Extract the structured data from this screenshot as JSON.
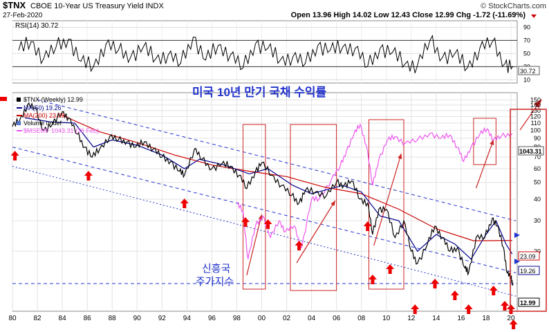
{
  "header": {
    "symbol": "$TNX",
    "description": "CBOE 10-Year US Treasury Yield INDX",
    "date": "27-Feb-2020",
    "brand": "© StockCharts.com",
    "ohlc": "Open 13.96  High 14.02  Low 12.43  Close 12.99  Chg -1.72 (-11.69%)",
    "ohlc_color": "#000000"
  },
  "rsi": {
    "label": "RSI(14) 30.72",
    "value_badge": "30.72",
    "ticks": [
      "90",
      "70",
      "50",
      "30",
      "10"
    ],
    "tick_values": [
      90,
      70,
      50,
      30,
      10
    ],
    "overbought": 70,
    "oversold": 30
  },
  "annotations": {
    "title_korean": "미국 10년 만기 국채 수익률",
    "em_label_line1": "신흥국",
    "em_label_line2": "주가지수"
  },
  "legend": {
    "l1": "$TNX (Weekly) 12.99",
    "l2": "MA(50) 19.26",
    "l3": "MA(200) 23.09",
    "l4": "Volume undef",
    "l5": "$MSEMF 1043.31 (26 Feb)"
  },
  "badges": {
    "msemf": "1043.31",
    "ma200": "23.09",
    "ma50": "19.26",
    "close": "12.99"
  },
  "colors": {
    "price": "#000000",
    "ma50": "#00008b",
    "ma200": "#cc0000",
    "msemf": "#ee55ee",
    "channel": "#2233cc",
    "arrow": "#ee0000",
    "box": "#cc2222"
  },
  "chart_data": {
    "type": "line",
    "title": "$TNX CBOE 10-Year US Treasury Yield INDX",
    "y_scale": "log",
    "ylim": [
      9,
      165
    ],
    "y_ticks": [
      150,
      140,
      130,
      120,
      110,
      100,
      90,
      80,
      70,
      60,
      50,
      40,
      30,
      20
    ],
    "x_ticks": [
      "80",
      "82",
      "84",
      "86",
      "88",
      "90",
      "92",
      "94",
      "96",
      "98",
      "00",
      "02",
      "04",
      "06",
      "08",
      "10",
      "12",
      "14",
      "16",
      "18",
      "20"
    ],
    "x_tick_years": [
      1980,
      1982,
      1984,
      1986,
      1988,
      1990,
      1992,
      1994,
      1996,
      1998,
      2000,
      2002,
      2004,
      2006,
      2008,
      2010,
      2012,
      2014,
      2016,
      2018,
      2020
    ],
    "series": [
      {
        "name": "$TNX (Weekly)",
        "x": [
          1980.0,
          1980.6,
          1981.2,
          1981.8,
          1982.5,
          1983.2,
          1984.0,
          1984.5,
          1985.2,
          1985.8,
          1986.4,
          1987.0,
          1987.8,
          1988.5,
          1989.2,
          1989.9,
          1990.6,
          1991.3,
          1992.0,
          1992.7,
          1993.4,
          1993.8,
          1994.6,
          1995.2,
          1996.0,
          1996.8,
          1997.5,
          1998.2,
          1998.8,
          1999.5,
          2000.0,
          2000.8,
          2001.6,
          2002.4,
          2003.0,
          2003.5,
          2004.3,
          2005.2,
          2006.0,
          2006.6,
          2007.2,
          2007.9,
          2008.5,
          2008.9,
          2009.4,
          2010.0,
          2010.7,
          2011.4,
          2012.0,
          2012.5,
          2013.3,
          2013.9,
          2014.5,
          2015.1,
          2015.7,
          2016.3,
          2016.6,
          2017.2,
          2017.9,
          2018.5,
          2018.9,
          2019.4,
          2019.7,
          2020.0,
          2020.15
        ],
        "values": [
          105,
          115,
          140,
          135,
          100,
          108,
          128,
          118,
          95,
          80,
          70,
          78,
          92,
          88,
          86,
          80,
          86,
          78,
          70,
          66,
          58,
          55,
          78,
          68,
          60,
          64,
          62,
          55,
          46,
          58,
          65,
          55,
          48,
          42,
          38,
          45,
          44,
          42,
          50,
          48,
          51,
          40,
          38,
          25,
          35,
          35,
          24,
          30,
          20,
          17,
          22,
          28,
          24,
          20,
          21,
          16,
          15,
          24,
          24,
          31,
          28,
          21,
          15,
          14,
          12.99
        ]
      },
      {
        "name": "MA(50)",
        "x": [
          1981.0,
          1983.0,
          1985.0,
          1986.5,
          1988.0,
          1990.0,
          1992.0,
          1993.8,
          1995.0,
          1997.0,
          1999.0,
          2000.5,
          2002.5,
          2004.0,
          2006.5,
          2008.0,
          2009.5,
          2011.0,
          2012.5,
          2014.0,
          2015.5,
          2016.8,
          2018.0,
          2018.8,
          2019.6,
          2020.1
        ],
        "values": [
          118,
          112,
          110,
          80,
          88,
          82,
          72,
          60,
          68,
          63,
          56,
          60,
          48,
          43,
          48,
          44,
          32,
          30,
          20,
          25,
          22,
          18,
          25,
          30,
          22,
          19.26
        ]
      },
      {
        "name": "MA(200)",
        "x": [
          1984.0,
          1987.0,
          1990.0,
          1993.0,
          1996.0,
          1999.0,
          2002.0,
          2005.0,
          2008.0,
          2011.0,
          2014.0,
          2017.0,
          2020.1
        ],
        "values": [
          122,
          98,
          85,
          72,
          63,
          58,
          54,
          47,
          43,
          35,
          27,
          23,
          23.09
        ]
      },
      {
        "name": "$MSEMF",
        "x": [
          1998.0,
          1998.5,
          1998.9,
          1999.5,
          2000.1,
          2000.7,
          2001.4,
          2001.9,
          2002.6,
          2003.2,
          2004.0,
          2004.6,
          2005.6,
          2006.3,
          2006.8,
          2007.4,
          2007.9,
          2008.4,
          2008.9,
          2009.4,
          2010.1,
          2010.7,
          2011.5,
          2012.5,
          2013.5,
          2014.4,
          2015.1,
          2015.7,
          2016.2,
          2016.8,
          2017.5,
          2018.1,
          2018.6,
          2019.2,
          2020.1
        ],
        "values": [
          38,
          34,
          18,
          28,
          32,
          24,
          30,
          26,
          28,
          21,
          40,
          40,
          52,
          62,
          76,
          95,
          108,
          82,
          48,
          68,
          88,
          92,
          84,
          88,
          96,
          90,
          94,
          80,
          66,
          80,
          95,
          102,
          88,
          92,
          96
        ]
      },
      {
        "name": "RSI(14)",
        "x": [
          1980.5,
          1981.5,
          1982.5,
          1983.5,
          1984.5,
          1985.5,
          1986.5,
          1987.5,
          1988.5,
          1989.5,
          1990.5,
          1991.5,
          1992.5,
          1993.5,
          1994.5,
          1995.5,
          1996.5,
          1997.5,
          1998.5,
          1999.5,
          2000.5,
          2001.5,
          2002.5,
          2003.5,
          2004.5,
          2005.5,
          2006.5,
          2007.5,
          2008.5,
          2009.5,
          2010.5,
          2011.5,
          2012.5,
          2013.5,
          2014.5,
          2015.5,
          2016.5,
          2017.5,
          2018.5,
          2019.5,
          2020.15
        ],
        "values": [
          55,
          68,
          42,
          60,
          72,
          38,
          30,
          64,
          55,
          45,
          60,
          42,
          48,
          35,
          75,
          40,
          62,
          48,
          28,
          65,
          58,
          40,
          45,
          35,
          62,
          55,
          60,
          58,
          30,
          58,
          52,
          34,
          32,
          70,
          44,
          50,
          28,
          58,
          68,
          34,
          30.72
        ]
      }
    ]
  }
}
